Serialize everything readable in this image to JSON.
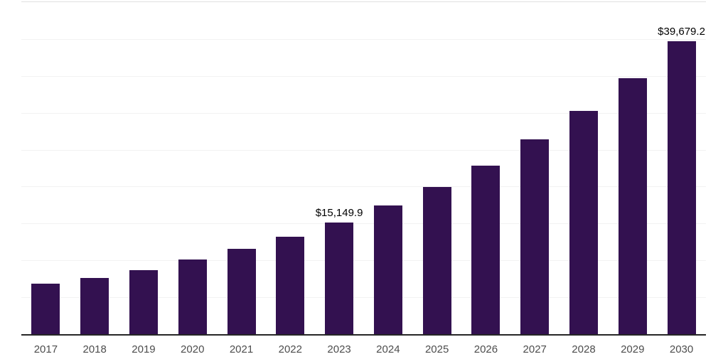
{
  "chart_data": {
    "type": "bar",
    "title": "",
    "xlabel": "",
    "ylabel": "",
    "categories": [
      "2017",
      "2018",
      "2019",
      "2020",
      "2021",
      "2022",
      "2023",
      "2024",
      "2025",
      "2026",
      "2027",
      "2028",
      "2029",
      "2030"
    ],
    "values": [
      6850,
      7650,
      8700,
      10100,
      11600,
      13250,
      15149.9,
      17400,
      19950,
      22850,
      26400,
      30250,
      34650,
      39679.2
    ],
    "annotations": [
      {
        "category": "2023",
        "text": "$15,149.9"
      },
      {
        "category": "2030",
        "text": "$39,679.2"
      }
    ],
    "ylim": [
      0,
      45000
    ],
    "ytick_step": 5000,
    "y_axis_labels_visible": false,
    "grid": "horizontal",
    "legend": "none"
  },
  "style": {
    "background": "#ffffff",
    "bar_color": "#331150",
    "axis_line_color": "#262626",
    "gridline_color": "#f2f2f2",
    "plot_top_line_color": "#e1e1e1",
    "tick_label_color": "#4d4d4d",
    "data_label_color": "#000000"
  }
}
